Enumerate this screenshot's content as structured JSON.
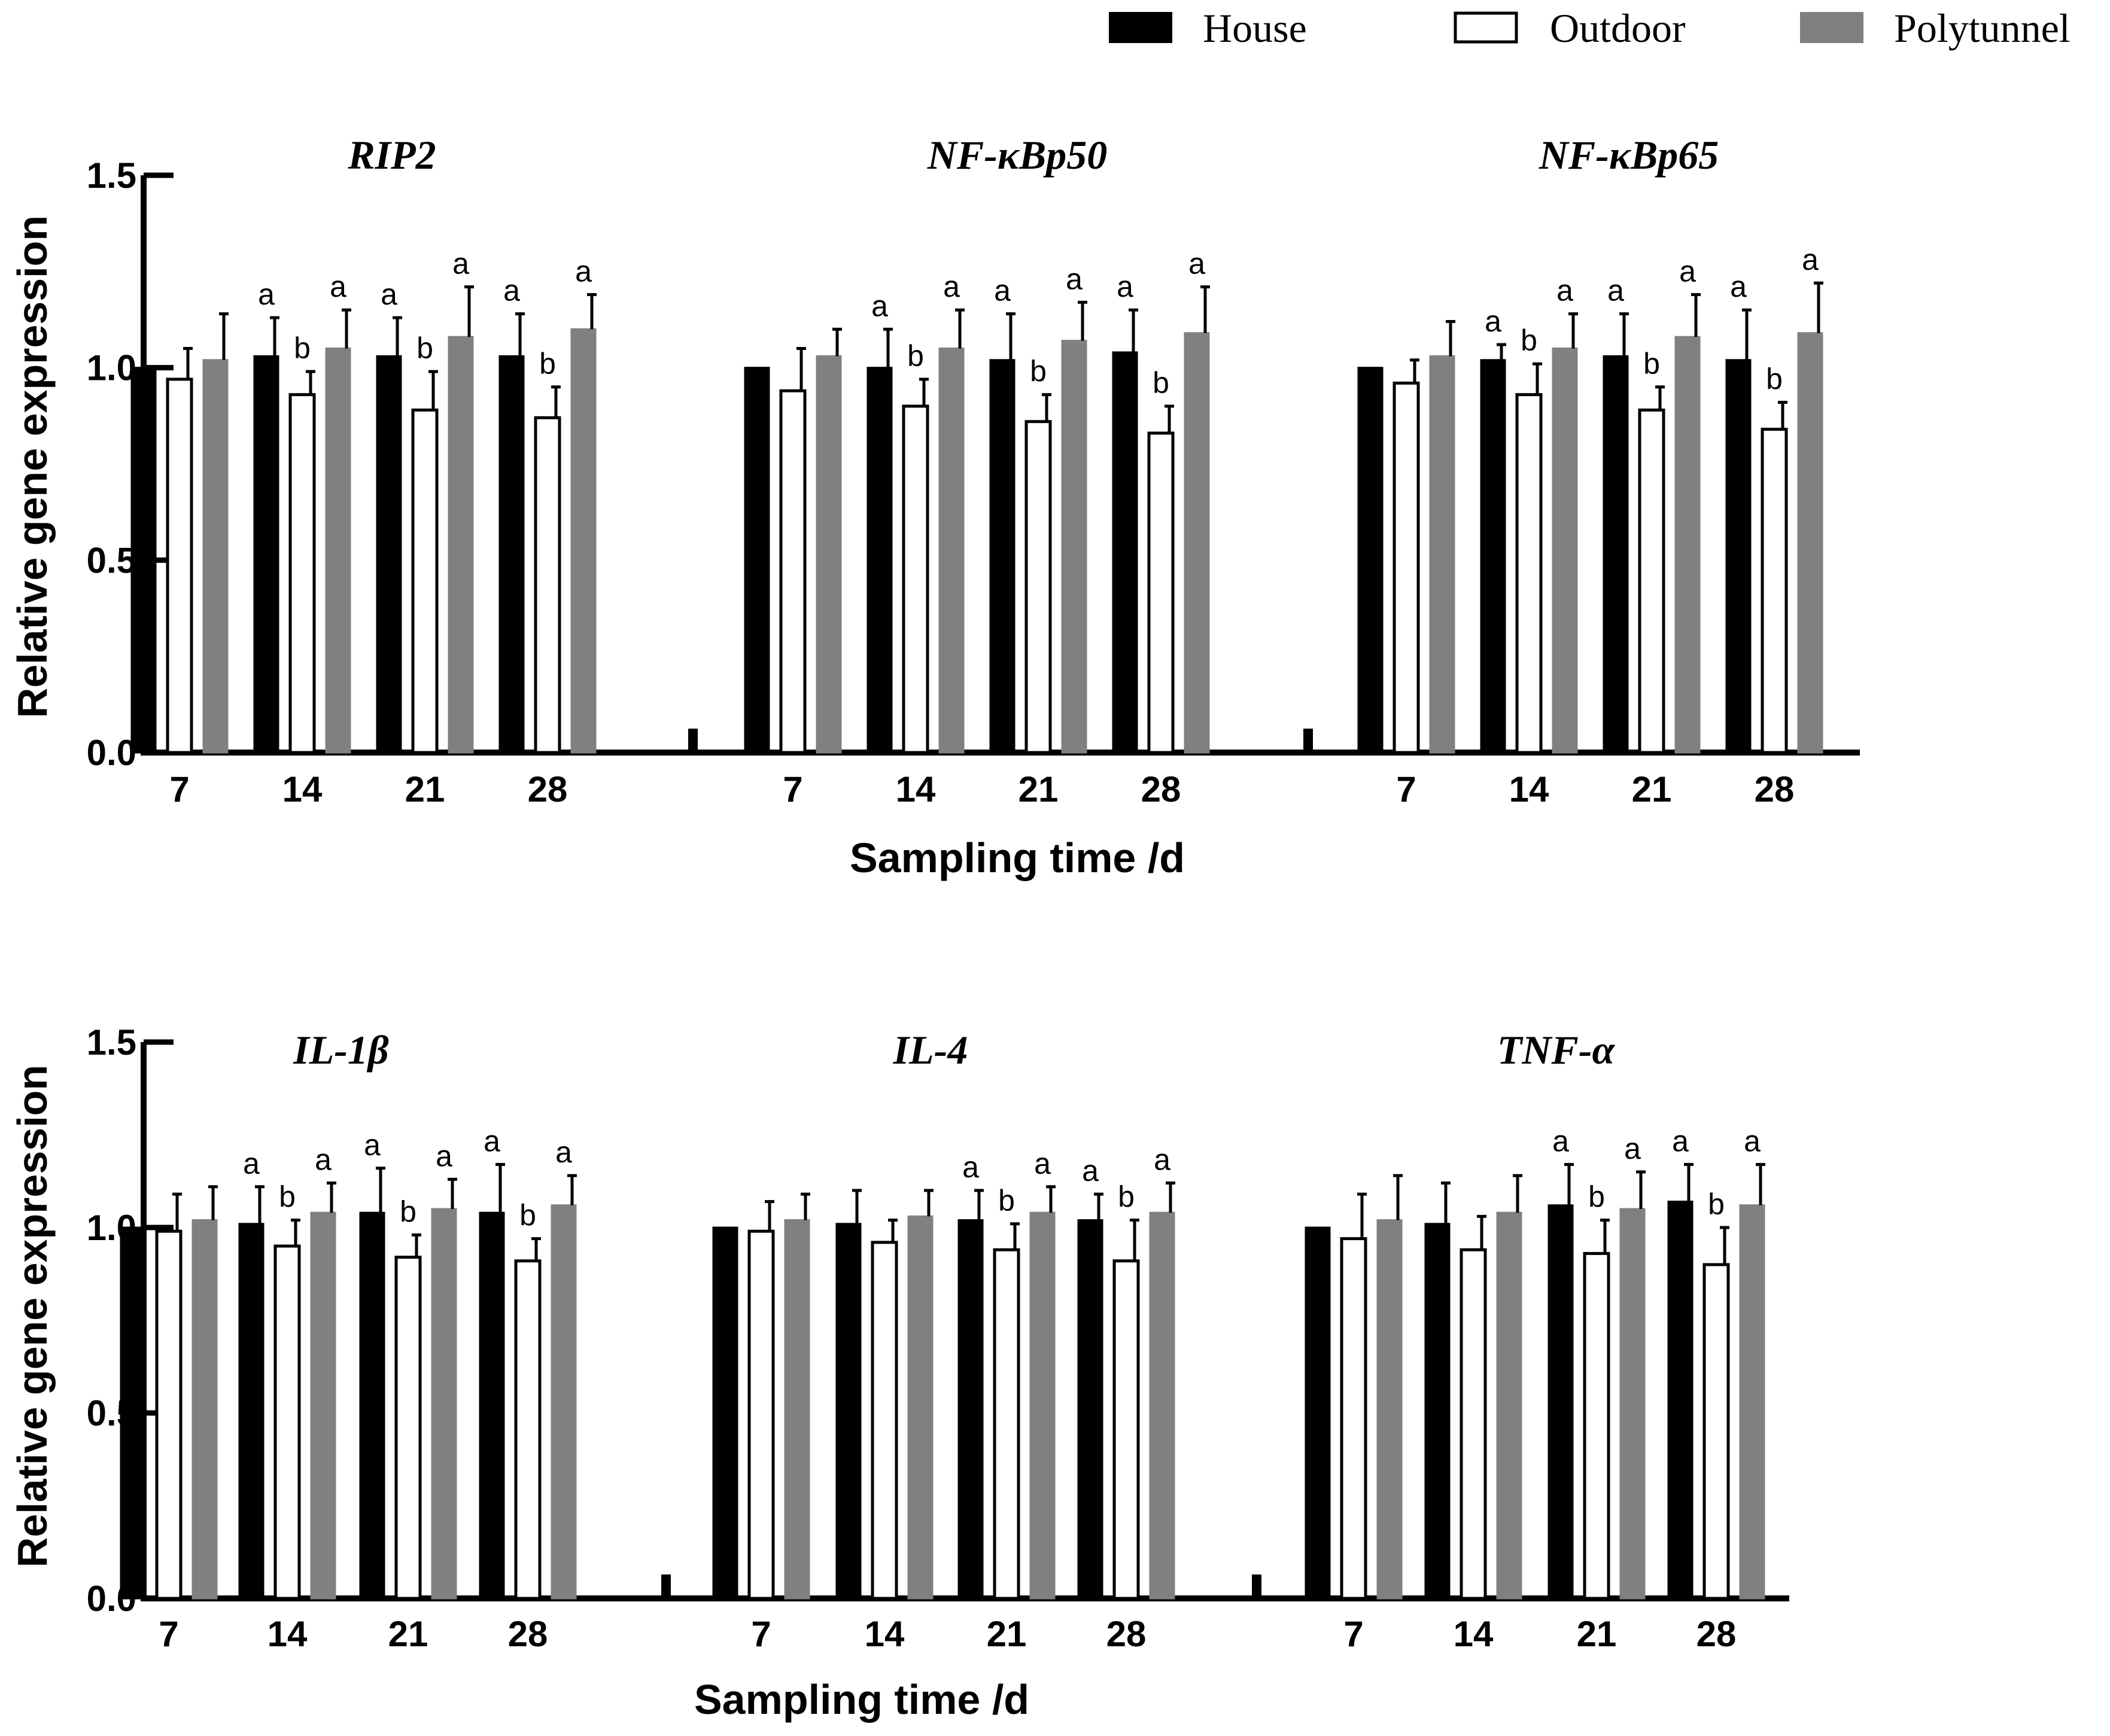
{
  "legend": [
    {
      "label": "House",
      "fill": "#000000",
      "stroke": "#000000"
    },
    {
      "label": "Outdoor",
      "fill": "#ffffff",
      "stroke": "#000000"
    },
    {
      "label": "Polytunnel",
      "fill": "#808080",
      "stroke": "#808080"
    }
  ],
  "chart_data": [
    {
      "type": "bar",
      "ylabel": "Relative gene expression",
      "xlabel": "Sampling time /d",
      "ylim": [
        0,
        1.5
      ],
      "yticks": [
        "0.0",
        "0.5",
        "1.0",
        "1.5"
      ],
      "categories": [
        "7",
        "14",
        "21",
        "28"
      ],
      "series_names": [
        "House",
        "Outdoor",
        "Polytunnel"
      ],
      "genes": [
        {
          "title": "RIP2",
          "values": [
            [
              1.0,
              0.97,
              1.02
            ],
            [
              1.03,
              0.93,
              1.05
            ],
            [
              1.03,
              0.89,
              1.08
            ],
            [
              1.03,
              0.87,
              1.1
            ]
          ],
          "errors": [
            [
              0,
              0.08,
              0.12
            ],
            [
              0.1,
              0.06,
              0.1
            ],
            [
              0.1,
              0.1,
              0.13
            ],
            [
              0.11,
              0.08,
              0.09
            ]
          ],
          "letters": [
            [
              "",
              "",
              ""
            ],
            [
              "a",
              "b",
              "a"
            ],
            [
              "a",
              "b",
              "a"
            ],
            [
              "a",
              "b",
              "a"
            ]
          ]
        },
        {
          "title": "NF-κBp50",
          "values": [
            [
              1.0,
              0.94,
              1.03
            ],
            [
              1.0,
              0.9,
              1.05
            ],
            [
              1.02,
              0.86,
              1.07
            ],
            [
              1.04,
              0.83,
              1.09
            ]
          ],
          "errors": [
            [
              0,
              0.11,
              0.07
            ],
            [
              0.1,
              0.07,
              0.1
            ],
            [
              0.12,
              0.07,
              0.1
            ],
            [
              0.11,
              0.07,
              0.12
            ]
          ],
          "letters": [
            [
              "",
              "",
              ""
            ],
            [
              "a",
              "b",
              "a"
            ],
            [
              "a",
              "b",
              "a"
            ],
            [
              "a",
              "b",
              "a"
            ]
          ]
        },
        {
          "title": "NF-κBp65",
          "values": [
            [
              1.0,
              0.96,
              1.03
            ],
            [
              1.02,
              0.93,
              1.05
            ],
            [
              1.03,
              0.89,
              1.08
            ],
            [
              1.02,
              0.84,
              1.09
            ]
          ],
          "errors": [
            [
              0,
              0.06,
              0.09
            ],
            [
              0.04,
              0.08,
              0.09
            ],
            [
              0.11,
              0.06,
              0.11
            ],
            [
              0.13,
              0.07,
              0.13
            ]
          ],
          "letters": [
            [
              "",
              "",
              ""
            ],
            [
              "a",
              "b",
              "a"
            ],
            [
              "a",
              "b",
              "a"
            ],
            [
              "a",
              "b",
              "a"
            ]
          ]
        }
      ]
    },
    {
      "type": "bar",
      "ylabel": "Relative gene expression",
      "xlabel": "Sampling time /d",
      "ylim": [
        0,
        1.5
      ],
      "yticks": [
        "0.0",
        "0.5",
        "1.0",
        "1.5"
      ],
      "categories": [
        "7",
        "14",
        "21",
        "28"
      ],
      "series_names": [
        "House",
        "Outdoor",
        "Polytunnel"
      ],
      "genes": [
        {
          "title": "IL-1β",
          "values": [
            [
              1.0,
              0.99,
              1.02
            ],
            [
              1.01,
              0.95,
              1.04
            ],
            [
              1.04,
              0.92,
              1.05
            ],
            [
              1.04,
              0.91,
              1.06
            ]
          ],
          "errors": [
            [
              0,
              0.1,
              0.09
            ],
            [
              0.1,
              0.07,
              0.08
            ],
            [
              0.12,
              0.06,
              0.08
            ],
            [
              0.13,
              0.06,
              0.08
            ]
          ],
          "letters": [
            [
              "",
              "",
              ""
            ],
            [
              "a",
              "b",
              "a"
            ],
            [
              "a",
              "b",
              "a"
            ],
            [
              "a",
              "b",
              "a"
            ]
          ]
        },
        {
          "title": "IL-4",
          "values": [
            [
              1.0,
              0.99,
              1.02
            ],
            [
              1.01,
              0.96,
              1.03
            ],
            [
              1.02,
              0.94,
              1.04
            ],
            [
              1.02,
              0.91,
              1.04
            ]
          ],
          "errors": [
            [
              0,
              0.08,
              0.07
            ],
            [
              0.09,
              0.06,
              0.07
            ],
            [
              0.08,
              0.07,
              0.07
            ],
            [
              0.07,
              0.11,
              0.08
            ]
          ],
          "letters": [
            [
              "",
              "",
              ""
            ],
            [
              "",
              "",
              ""
            ],
            [
              "a",
              "b",
              "a"
            ],
            [
              "a",
              "b",
              "a"
            ]
          ]
        },
        {
          "title": "TNF-α",
          "values": [
            [
              1.0,
              0.97,
              1.02
            ],
            [
              1.01,
              0.94,
              1.04
            ],
            [
              1.06,
              0.93,
              1.05
            ],
            [
              1.07,
              0.9,
              1.06
            ]
          ],
          "errors": [
            [
              0,
              0.12,
              0.12
            ],
            [
              0.11,
              0.09,
              0.1
            ],
            [
              0.11,
              0.09,
              0.1
            ],
            [
              0.1,
              0.1,
              0.11
            ]
          ],
          "letters": [
            [
              "",
              "",
              ""
            ],
            [
              "",
              "",
              ""
            ],
            [
              "a",
              "b",
              "a"
            ],
            [
              "a",
              "b",
              "a"
            ]
          ]
        }
      ]
    }
  ]
}
